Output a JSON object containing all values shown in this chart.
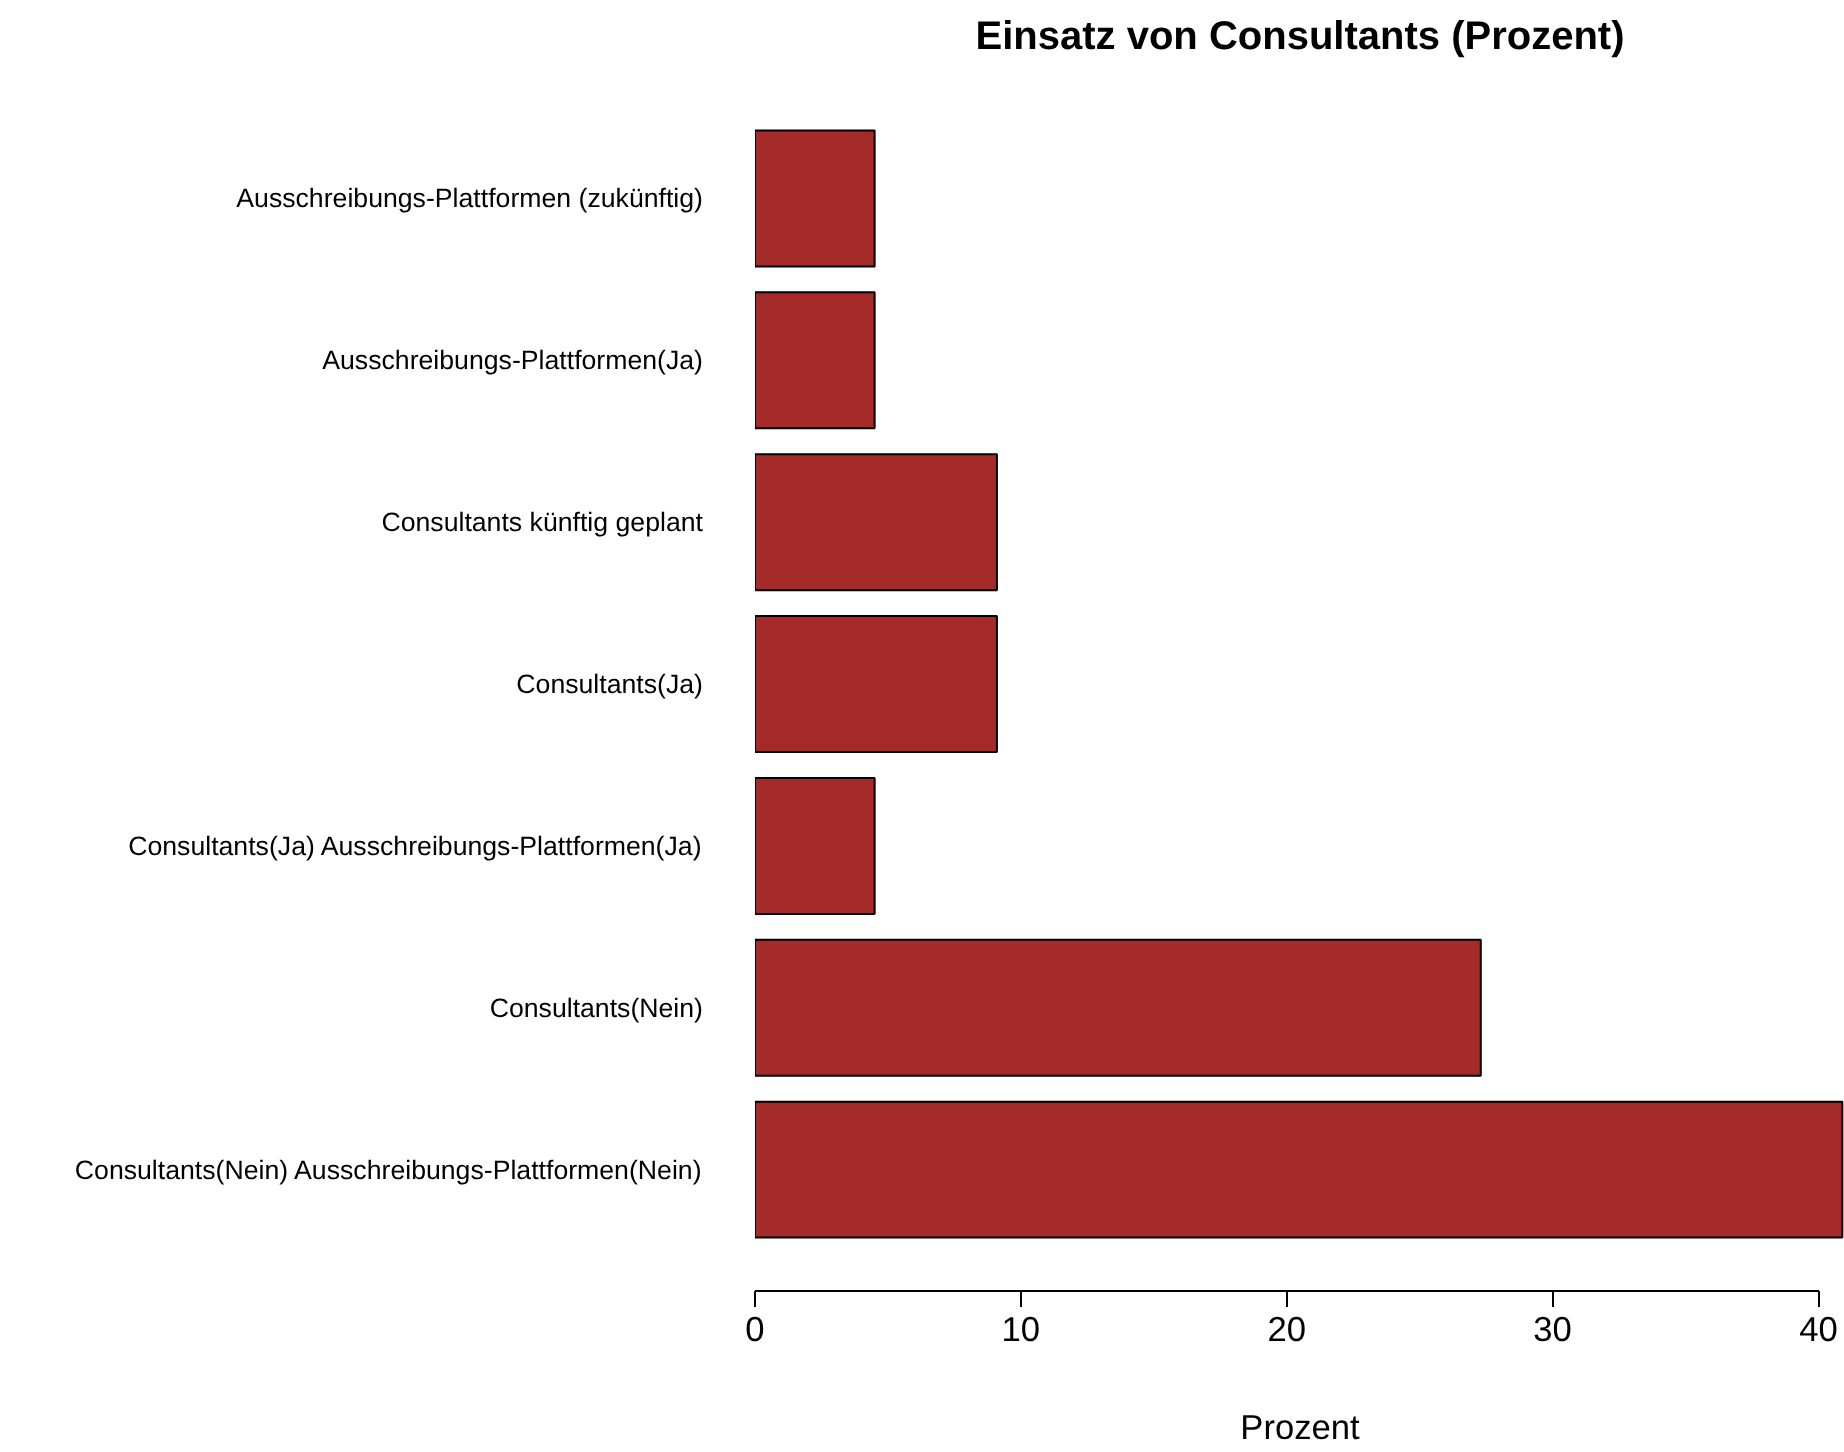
{
  "chart_data": {
    "type": "bar",
    "orientation": "horizontal",
    "title": "Einsatz von Consultants (Prozent)",
    "xlabel": "Prozent",
    "categories": [
      "Ausschreibungs-Plattformen (zukünftig)",
      "Ausschreibungs-Plattformen(Ja)",
      "Consultants künftig geplant",
      "Consultants(Ja)",
      "Consultants(Ja) Ausschreibungs-Plattformen(Ja)",
      "Consultants(Nein)",
      "Consultants(Nein) Ausschreibungs-Plattformen(Nein)"
    ],
    "values": [
      4.5,
      4.5,
      9.1,
      9.1,
      4.5,
      27.3,
      40.9
    ],
    "color": "#a52a2a",
    "xlim": [
      0,
      41
    ],
    "xticks": [
      0,
      10,
      20,
      30,
      40
    ],
    "grid": false
  }
}
